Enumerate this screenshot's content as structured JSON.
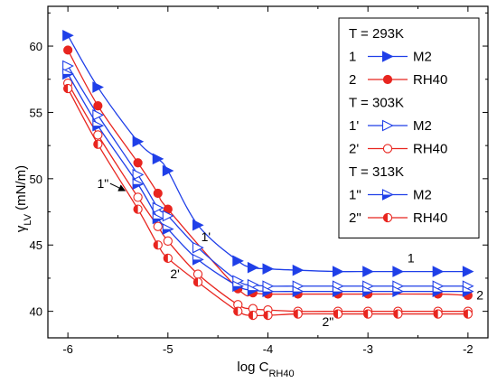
{
  "chart_data": {
    "type": "line",
    "xlabel": "log C",
    "xlabel_sub": "RH40",
    "ylabel": "γ",
    "ylabel_sub": "LV",
    "ylabel_units": "(mN/m)",
    "xlim": [
      -6.2,
      -1.8
    ],
    "ylim": [
      38,
      63
    ],
    "x_ticks": [
      -6,
      -5,
      -4,
      -3,
      -2
    ],
    "x_tick_labels": [
      "-6",
      "-5",
      "-4",
      "-3",
      "-2"
    ],
    "y_ticks": [
      40,
      45,
      50,
      55,
      60
    ],
    "y_tick_labels": [
      "40",
      "45",
      "50",
      "55",
      "60"
    ],
    "grid": false,
    "legend_position": "top-right",
    "legend": [
      {
        "kind": "header",
        "text": "T = 293K"
      },
      {
        "kind": "series",
        "num": "1",
        "label": "M2",
        "series_index": 0
      },
      {
        "kind": "series",
        "num": "2",
        "label": "RH40",
        "series_index": 1
      },
      {
        "kind": "header",
        "text": "T = 303K"
      },
      {
        "kind": "series",
        "num": "1'",
        "label": "M2",
        "series_index": 2
      },
      {
        "kind": "series",
        "num": "2'",
        "label": "RH40",
        "series_index": 3
      },
      {
        "kind": "header",
        "text": "T = 313K"
      },
      {
        "kind": "series",
        "num": "1\"",
        "label": "M2",
        "series_index": 4
      },
      {
        "kind": "series",
        "num": "2\"",
        "label": "RH40",
        "series_index": 5
      }
    ],
    "series": [
      {
        "color": "#1f3fe8",
        "marker": "triangle-filled",
        "x": [
          -6,
          -5.7,
          -5.3,
          -5.1,
          -5.0,
          -4.7,
          -4.3,
          -4.15,
          -4.0,
          -3.7,
          -3.3,
          -3.0,
          -2.7,
          -2.3,
          -2.0
        ],
        "y": [
          60.8,
          56.9,
          52.8,
          51.5,
          50.6,
          46.5,
          43.8,
          43.3,
          43.2,
          43.1,
          43.0,
          43.0,
          43.0,
          43.0,
          43.0
        ]
      },
      {
        "color": "#e8251f",
        "marker": "circle-filled",
        "x": [
          -6,
          -5.7,
          -5.3,
          -5.1,
          -5.0,
          -4.3,
          -4.15,
          -4.0,
          -3.7,
          -3.3,
          -3.0,
          -2.3,
          -2.0
        ],
        "y": [
          59.7,
          55.5,
          51.2,
          48.9,
          47.7,
          41.7,
          41.4,
          41.3,
          41.3,
          41.3,
          41.3,
          41.3,
          41.2
        ]
      },
      {
        "color": "#1f3fe8",
        "marker": "triangle-open",
        "x": [
          -6,
          -5.7,
          -5.3,
          -5.1,
          -5.0,
          -4.7,
          -4.3,
          -4.15,
          -4.0,
          -3.7,
          -3.3,
          -3.0,
          -2.7,
          -2.3,
          -2.0
        ],
        "y": [
          58.5,
          54.8,
          50.3,
          47.8,
          47.2,
          44.8,
          42.3,
          42.0,
          41.9,
          41.9,
          41.9,
          41.9,
          41.9,
          41.9,
          41.9
        ]
      },
      {
        "color": "#e8251f",
        "marker": "circle-open",
        "x": [
          -6,
          -5.7,
          -5.3,
          -5.1,
          -5.0,
          -4.7,
          -4.3,
          -4.15,
          -4.0,
          -3.7,
          -3.3,
          -3.0,
          -2.7,
          -2.3,
          -2.0
        ],
        "y": [
          57.2,
          53.3,
          48.6,
          46.4,
          45.3,
          42.8,
          40.5,
          40.2,
          40.1,
          40.0,
          40.0,
          40.0,
          40.0,
          40.0,
          40.0
        ]
      },
      {
        "color": "#1f3fe8",
        "marker": "triangle-half",
        "x": [
          -6,
          -5.7,
          -5.3,
          -5.1,
          -5.0,
          -4.7,
          -4.3,
          -4.15,
          -4.0,
          -3.7,
          -3.3,
          -3.0,
          -2.7,
          -2.3,
          -2.0
        ],
        "y": [
          57.9,
          54.0,
          49.6,
          47.0,
          46.2,
          43.9,
          41.9,
          41.6,
          41.5,
          41.5,
          41.5,
          41.5,
          41.5,
          41.5,
          41.5
        ]
      },
      {
        "color": "#e8251f",
        "marker": "circle-half",
        "x": [
          -6,
          -5.7,
          -5.3,
          -5.1,
          -5.0,
          -4.7,
          -4.3,
          -4.15,
          -4.0,
          -3.7,
          -3.3,
          -3.0,
          -2.7,
          -2.3,
          -2.0
        ],
        "y": [
          56.8,
          52.6,
          47.7,
          45.0,
          44.0,
          42.2,
          40.0,
          39.7,
          39.7,
          39.8,
          39.8,
          39.8,
          39.8,
          39.8,
          39.8
        ]
      }
    ],
    "annotations": [
      {
        "text": "1",
        "x": -2.57,
        "y": 43.7
      },
      {
        "text": "2",
        "x": -1.88,
        "y": 40.9
      },
      {
        "text": "1'",
        "x": -4.62,
        "y": 45.3
      },
      {
        "text": "2'",
        "x": -4.93,
        "y": 42.5
      },
      {
        "text": "2\"",
        "x": -3.4,
        "y": 38.9
      },
      {
        "text": "1\"",
        "x": -5.65,
        "y": 49.3,
        "arrow_to_x": -5.43,
        "arrow_to_y": 49.1
      }
    ]
  }
}
